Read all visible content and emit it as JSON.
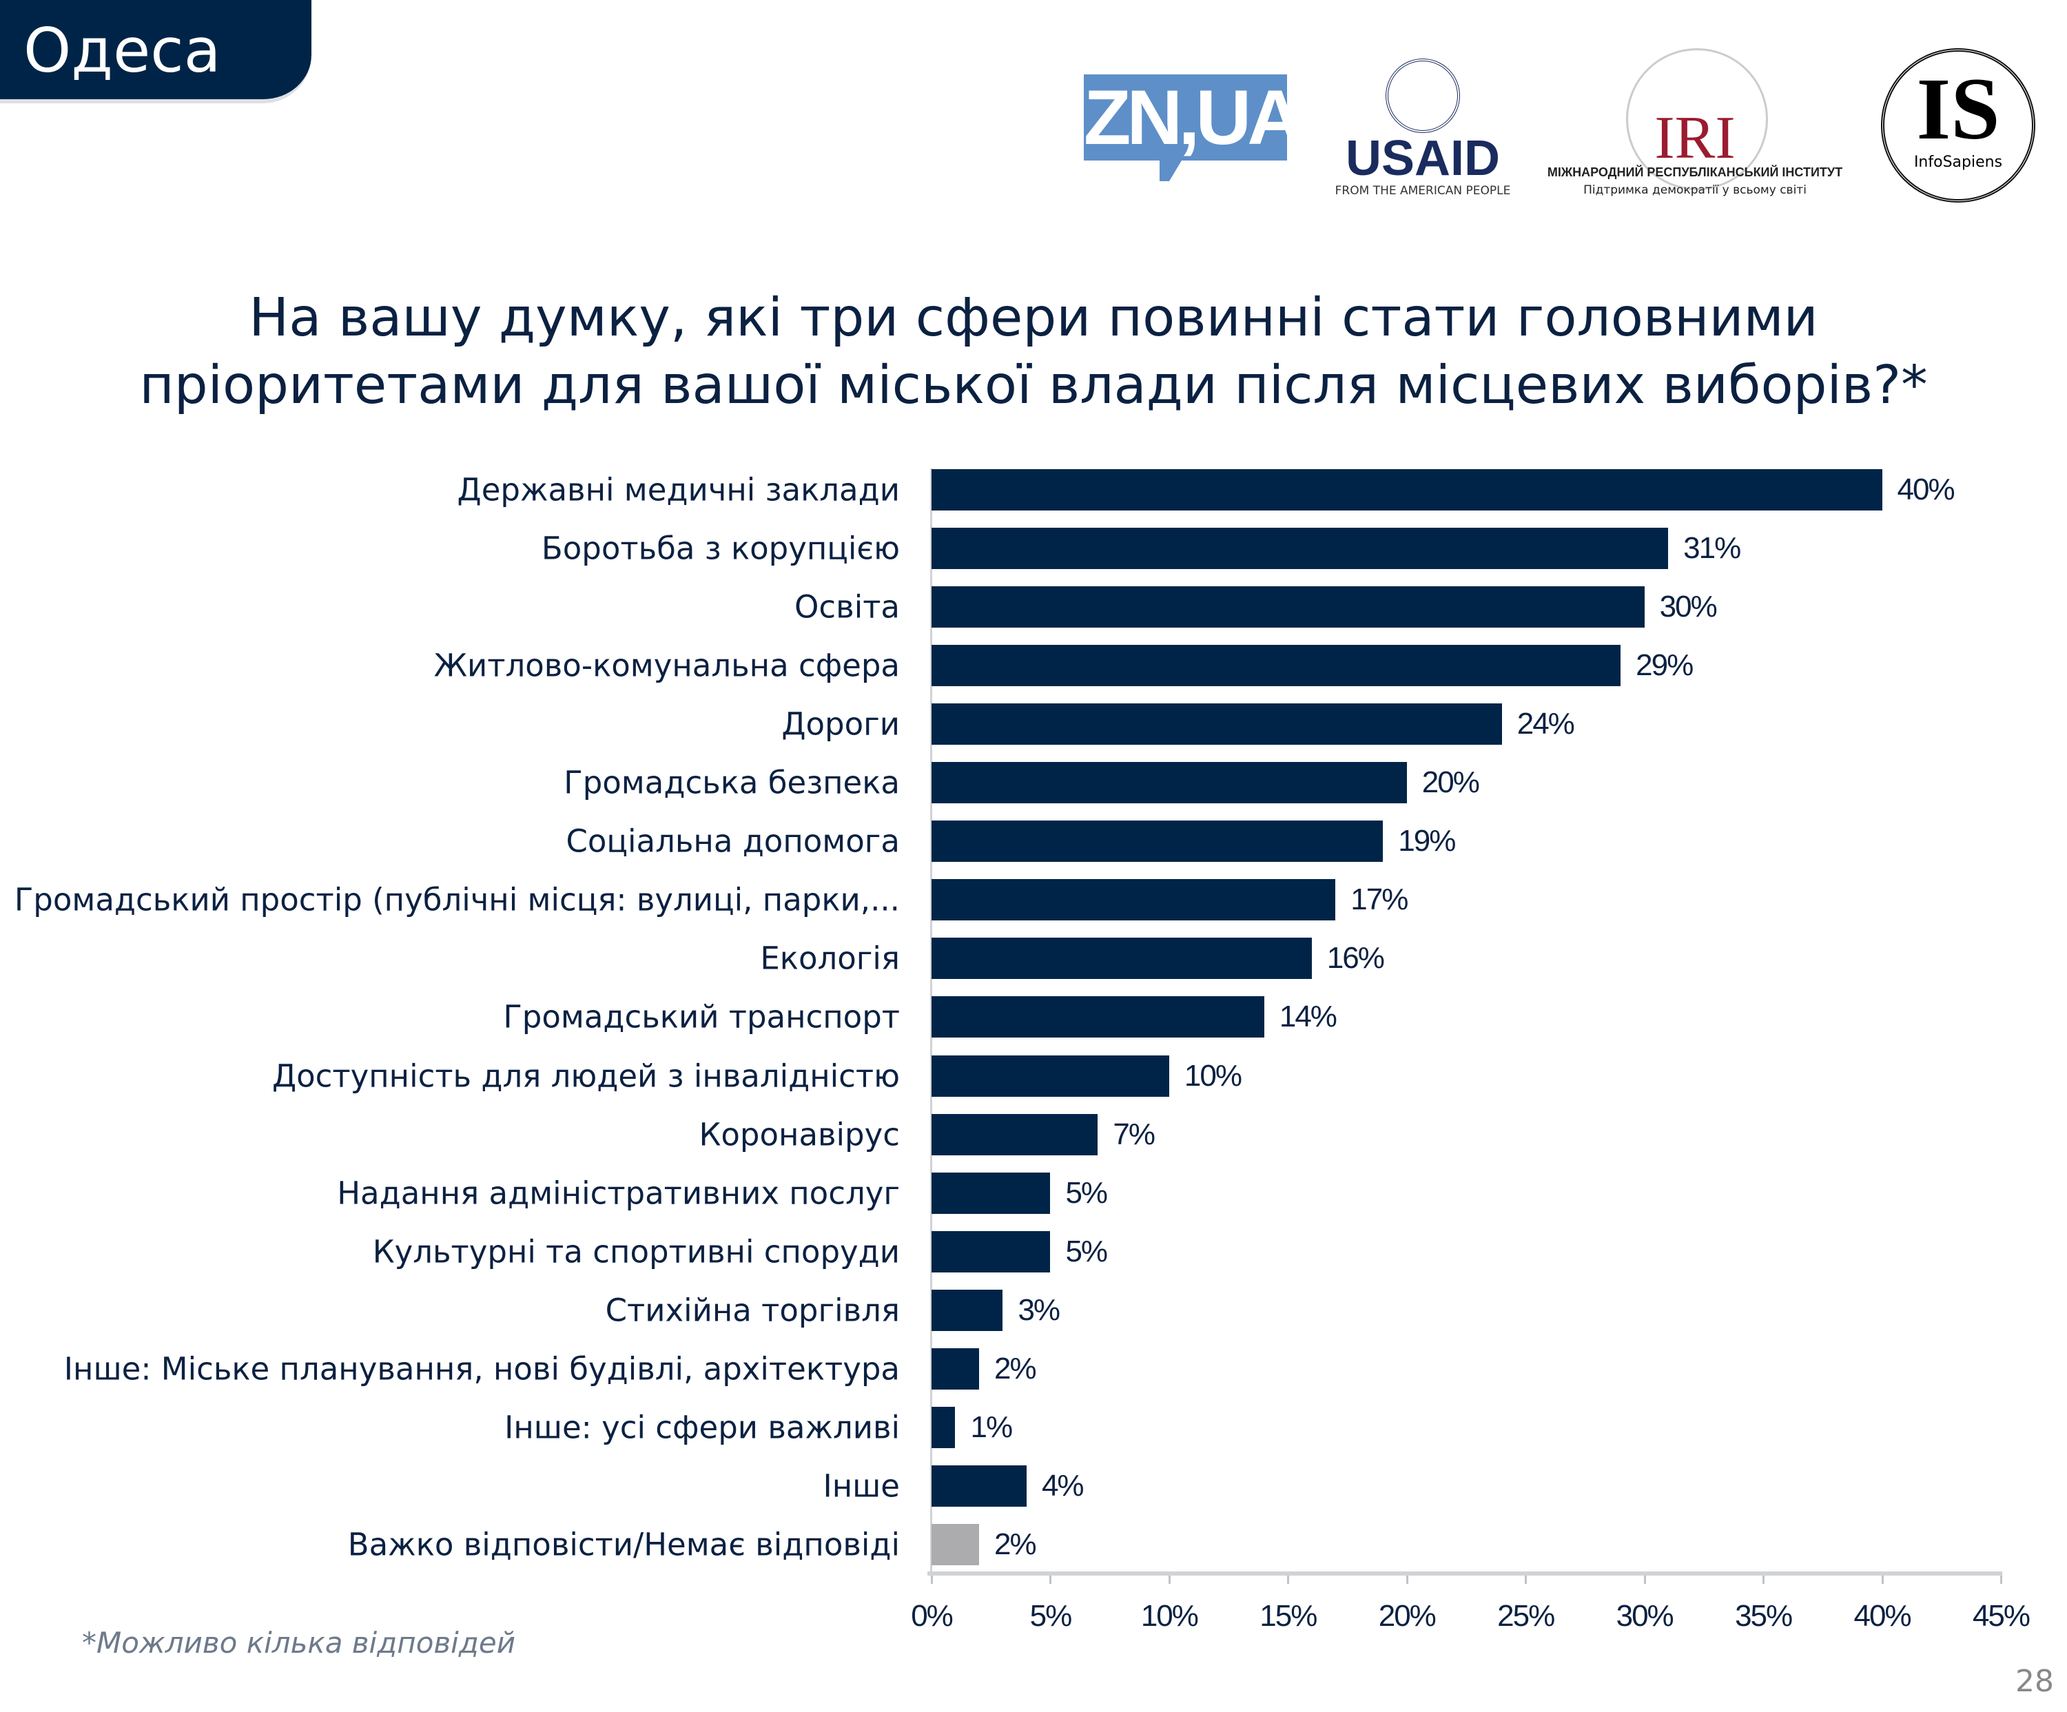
{
  "header": {
    "region": "Одеса"
  },
  "logos": {
    "zn": "ZN,UA",
    "usaid": {
      "name": "USAID",
      "tagline": "FROM THE AMERICAN PEOPLE"
    },
    "iri": {
      "name": "IRI",
      "line1": "МІЖНАРОДНИЙ РЕСПУБЛІКАНСЬКИЙ ІНСТИТУТ",
      "line2": "Підтримка демократії у всьому світі"
    },
    "infosapiens": {
      "name": "IS",
      "tagline": "InfoSapiens"
    }
  },
  "chart_data": {
    "type": "bar",
    "orientation": "horizontal",
    "title_line1": "На вашу думку, які три сфери повинні стати головними",
    "title_line2": "пріоритетами для вашої міської влади після місцевих виборів?*",
    "categories": [
      "Державні медичні заклади",
      "Боротьба з корупцією",
      "Освіта",
      "Житлово-комунальна сфера",
      "Дороги",
      "Громадська безпека",
      "Соціальна допомога",
      "Громадський простір (публічні місця: вулиці, парки,...",
      "Екологія",
      "Громадський транспорт",
      "Доступність для людей з інвалідністю",
      "Коронавірус",
      "Надання адміністративних послуг",
      "Культурні та спортивні споруди",
      "Стихійна торгівля",
      "Інше: Міське планування, нові будівлі, архітектура",
      "Інше: усі сфери важливі",
      "Інше",
      "Важко відповісти/Немає відповіді"
    ],
    "values": [
      40,
      31,
      30,
      29,
      24,
      20,
      19,
      17,
      16,
      14,
      10,
      7,
      5,
      5,
      3,
      2,
      1,
      4,
      2
    ],
    "value_labels": [
      "40%",
      "31%",
      "30%",
      "29%",
      "24%",
      "20%",
      "19%",
      "17%",
      "16%",
      "14%",
      "10%",
      "7%",
      "5%",
      "5%",
      "3%",
      "2%",
      "1%",
      "4%",
      "2%"
    ],
    "colors": {
      "default": "#002447",
      "last": "#acacae"
    },
    "xlim": [
      0,
      45
    ],
    "xticks": [
      "0%",
      "5%",
      "10%",
      "15%",
      "20%",
      "25%",
      "30%",
      "35%",
      "40%",
      "45%"
    ],
    "grid": false,
    "legend": "none"
  },
  "footnote": "*Можливо кілька відповідей",
  "page_number": "28"
}
